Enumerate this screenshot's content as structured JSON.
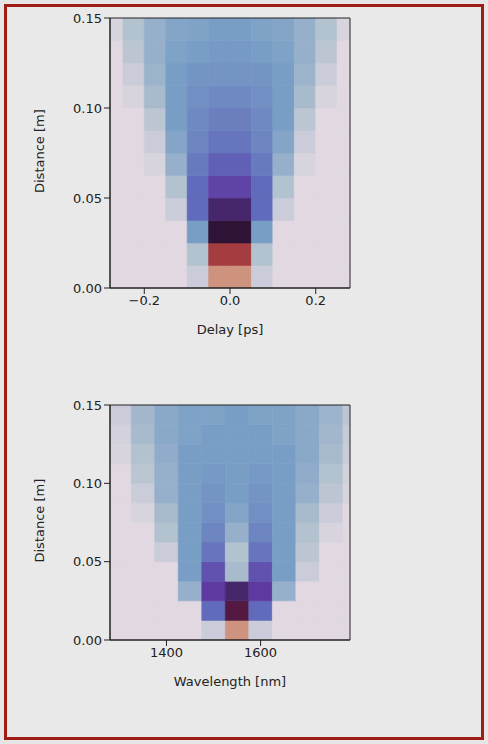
{
  "chart_data": [
    {
      "type": "heatmap",
      "x_label": "Delay [ps]",
      "y_label": "Distance [m]",
      "xlim": [
        -0.28,
        0.28
      ],
      "ylim": [
        0,
        0.15
      ],
      "xticks": [
        {
          "value": -0.2,
          "label": "−0.2"
        },
        {
          "value": 0,
          "label": "0.0"
        },
        {
          "value": 0.2,
          "label": "0.2"
        }
      ],
      "yticks": [
        {
          "value": 0,
          "label": "0.00"
        },
        {
          "value": 0.05,
          "label": "0.05"
        },
        {
          "value": 0.1,
          "label": "0.10"
        },
        {
          "value": 0.15,
          "label": "0.15"
        }
      ],
      "x": [
        -0.275,
        -0.225,
        -0.175,
        -0.125,
        -0.075,
        -0.025,
        0.025,
        0.075,
        0.125,
        0.175,
        0.225,
        0.275
      ],
      "y": [
        0.00625,
        0.01875,
        0.03125,
        0.04375,
        0.05625,
        0.06875,
        0.08125,
        0.09375,
        0.10625,
        0.11875,
        0.13125,
        0.14375
      ],
      "cells": [
        [
          0,
          0,
          0,
          0,
          0.05,
          0.85,
          0.85,
          0.05,
          0,
          0,
          0,
          0
        ],
        [
          0,
          0,
          0,
          0,
          0.1,
          0.7,
          0.7,
          0.1,
          0,
          0,
          0,
          0
        ],
        [
          0,
          0,
          0,
          0,
          0.2,
          0.5,
          0.5,
          0.2,
          0,
          0,
          0,
          0
        ],
        [
          0,
          0,
          0,
          0.05,
          0.3,
          0.45,
          0.45,
          0.3,
          0.05,
          0,
          0,
          0
        ],
        [
          0,
          0,
          0,
          0.1,
          0.3,
          0.38,
          0.38,
          0.3,
          0.1,
          0,
          0,
          0
        ],
        [
          0,
          0,
          0.02,
          0.15,
          0.27,
          0.32,
          0.32,
          0.27,
          0.15,
          0.02,
          0,
          0
        ],
        [
          0,
          0,
          0.05,
          0.18,
          0.25,
          0.28,
          0.28,
          0.25,
          0.18,
          0.05,
          0,
          0
        ],
        [
          0,
          0,
          0.08,
          0.2,
          0.24,
          0.26,
          0.26,
          0.24,
          0.2,
          0.08,
          0,
          0
        ],
        [
          0,
          0.02,
          0.12,
          0.2,
          0.23,
          0.24,
          0.24,
          0.23,
          0.2,
          0.12,
          0.02,
          0
        ],
        [
          0,
          0.05,
          0.14,
          0.2,
          0.22,
          0.22,
          0.22,
          0.22,
          0.2,
          0.14,
          0.05,
          0
        ],
        [
          0,
          0.08,
          0.15,
          0.19,
          0.2,
          0.21,
          0.21,
          0.2,
          0.19,
          0.15,
          0.08,
          0
        ],
        [
          0.02,
          0.1,
          0.15,
          0.18,
          0.19,
          0.2,
          0.2,
          0.19,
          0.18,
          0.15,
          0.1,
          0.02
        ]
      ]
    },
    {
      "type": "heatmap",
      "x_label": "Wavelength [nm]",
      "y_label": "Distance [m]",
      "xlim": [
        1280,
        1790
      ],
      "ylim": [
        0,
        0.15
      ],
      "xticks": [
        1400,
        1600
      ],
      "yticks": [
        {
          "value": 0,
          "label": "0.00"
        },
        {
          "value": 0.05,
          "label": "0.05"
        },
        {
          "value": 0.1,
          "label": "0.10"
        },
        {
          "value": 0.15,
          "label": "0.15"
        }
      ],
      "x": [
        1300,
        1350,
        1400,
        1450,
        1500,
        1550,
        1600,
        1650,
        1700,
        1750,
        1800
      ],
      "y": [
        0.00625,
        0.01875,
        0.03125,
        0.04375,
        0.05625,
        0.06875,
        0.08125,
        0.09375,
        0.10625,
        0.11875,
        0.13125,
        0.14375
      ],
      "cells": [
        [
          0,
          0,
          0,
          0,
          0.05,
          0.85,
          0.05,
          0,
          0,
          0,
          0
        ],
        [
          0,
          0,
          0,
          0,
          0.3,
          0.55,
          0.3,
          0,
          0,
          0,
          0
        ],
        [
          0,
          0,
          0,
          0.15,
          0.4,
          0.45,
          0.4,
          0.15,
          0,
          0,
          0
        ],
        [
          0,
          0,
          0,
          0.2,
          0.35,
          0.12,
          0.35,
          0.2,
          0.05,
          0,
          0
        ],
        [
          0,
          0,
          0.05,
          0.2,
          0.28,
          0.1,
          0.28,
          0.2,
          0.08,
          0,
          0
        ],
        [
          0,
          0,
          0.1,
          0.2,
          0.25,
          0.15,
          0.25,
          0.2,
          0.1,
          0.02,
          0
        ],
        [
          0,
          0.02,
          0.12,
          0.2,
          0.23,
          0.18,
          0.23,
          0.2,
          0.12,
          0.05,
          0
        ],
        [
          0,
          0.05,
          0.15,
          0.2,
          0.22,
          0.2,
          0.22,
          0.2,
          0.15,
          0.08,
          0.02
        ],
        [
          0,
          0.08,
          0.15,
          0.2,
          0.21,
          0.2,
          0.21,
          0.2,
          0.16,
          0.1,
          0.03
        ],
        [
          0.02,
          0.1,
          0.16,
          0.2,
          0.2,
          0.2,
          0.2,
          0.2,
          0.17,
          0.12,
          0.05
        ],
        [
          0.03,
          0.12,
          0.17,
          0.19,
          0.2,
          0.2,
          0.2,
          0.19,
          0.17,
          0.13,
          0.06
        ],
        [
          0.05,
          0.13,
          0.17,
          0.19,
          0.19,
          0.2,
          0.19,
          0.19,
          0.17,
          0.14,
          0.08
        ]
      ]
    }
  ]
}
